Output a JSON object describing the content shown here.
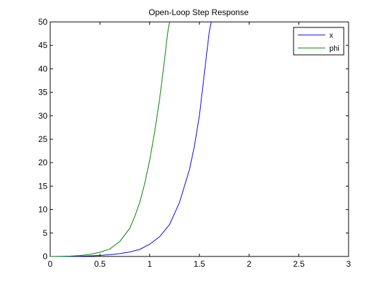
{
  "chart_data": {
    "type": "line",
    "title": "Open-Loop Step Response",
    "xlabel": "",
    "ylabel": "",
    "xlim": [
      0,
      3
    ],
    "ylim": [
      0,
      50
    ],
    "x_ticks": [
      0,
      0.5,
      1,
      1.5,
      2,
      2.5,
      3
    ],
    "x_tick_labels": [
      "0",
      "0.5",
      "1",
      "1.5",
      "2",
      "2.5",
      "3"
    ],
    "y_ticks": [
      0,
      5,
      10,
      15,
      20,
      25,
      30,
      35,
      40,
      45,
      50
    ],
    "y_tick_labels": [
      "0",
      "5",
      "10",
      "15",
      "20",
      "25",
      "30",
      "35",
      "40",
      "45",
      "50"
    ],
    "grid": false,
    "legend_position": "top-right",
    "series": [
      {
        "name": "x",
        "color": "#0000ff",
        "x": [
          0,
          0.1,
          0.2,
          0.3,
          0.4,
          0.5,
          0.6,
          0.7,
          0.8,
          0.9,
          1.0,
          1.1,
          1.2,
          1.3,
          1.4,
          1.45,
          1.5,
          1.55,
          1.6,
          1.62
        ],
        "y": [
          0,
          0,
          0.02,
          0.05,
          0.12,
          0.22,
          0.38,
          0.6,
          0.95,
          1.5,
          2.6,
          4.2,
          6.8,
          11.5,
          18.5,
          23.5,
          30,
          39,
          48,
          50
        ]
      },
      {
        "name": "phi",
        "color": "#008000",
        "x": [
          0,
          0.1,
          0.2,
          0.3,
          0.4,
          0.5,
          0.6,
          0.7,
          0.8,
          0.85,
          0.9,
          0.95,
          1.0,
          1.05,
          1.1,
          1.15,
          1.18,
          1.2
        ],
        "y": [
          0,
          0.02,
          0.08,
          0.2,
          0.45,
          0.9,
          1.6,
          3.2,
          6.0,
          8.5,
          11.5,
          15.5,
          20.5,
          26.5,
          33.5,
          42,
          47.5,
          50
        ]
      }
    ]
  }
}
